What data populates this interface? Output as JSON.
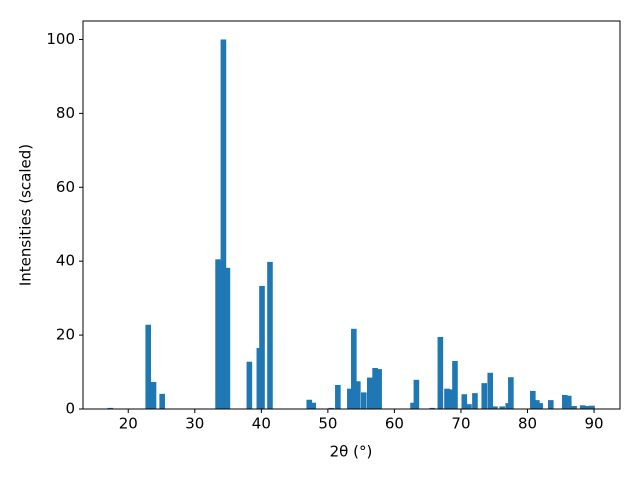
{
  "chart_data": {
    "type": "bar",
    "xlabel": "2θ (°)",
    "ylabel": "Intensities (scaled)",
    "color": "#1f77b4",
    "x": [
      17.3,
      23.0,
      23.8,
      25.1,
      33.5,
      34.3,
      34.9,
      38.2,
      39.7,
      40.1,
      41.3,
      47.2,
      47.8,
      50.5,
      51.5,
      53.3,
      53.9,
      54.5,
      55.4,
      56.3,
      57.1,
      57.7,
      62.8,
      63.3,
      65.7,
      66.9,
      67.9,
      68.5,
      69.1,
      70.5,
      71.2,
      72.1,
      73.5,
      74.4,
      75.1,
      76.2,
      77.1,
      77.5,
      80.8,
      81.4,
      81.9,
      83.5,
      85.6,
      86.2,
      87.0,
      88.3,
      89.1,
      89.7
    ],
    "values": [
      0.3,
      22.8,
      7.3,
      4.1,
      40.5,
      100,
      38.2,
      12.8,
      16.5,
      33.3,
      39.8,
      2.5,
      1.7,
      0.3,
      6.5,
      5.5,
      21.7,
      7.5,
      4.5,
      8.5,
      11.1,
      10.8,
      1.7,
      7.9,
      0.3,
      19.5,
      5.5,
      5.3,
      13.0,
      4.0,
      1.3,
      4.3,
      7.0,
      9.8,
      0.7,
      0.7,
      1.6,
      8.6,
      4.9,
      2.4,
      1.6,
      2.4,
      3.8,
      3.6,
      0.8,
      1.0,
      0.8,
      0.9
    ],
    "xlim": [
      13.2,
      93.9
    ],
    "xticks": [
      20,
      30,
      40,
      50,
      60,
      70,
      80,
      90
    ],
    "ylim": [
      0,
      105
    ],
    "yticks": [
      0,
      20,
      40,
      60,
      80,
      100
    ]
  }
}
